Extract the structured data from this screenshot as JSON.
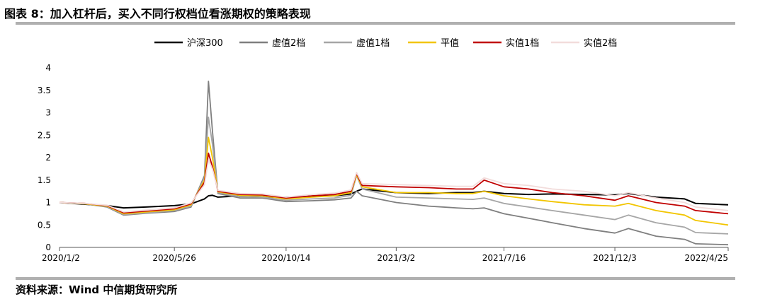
{
  "page": {
    "title": "图表 8：加入杠杆后，买入不同行权档位看涨期权的策略表现",
    "source": "资料来源：Wind 中信期货研究所"
  },
  "chart_data": {
    "type": "line",
    "title": "",
    "xlabel": "",
    "ylabel": "",
    "ylim": [
      0,
      4
    ],
    "yticks": [
      "0",
      "0.5",
      "1",
      "1.5",
      "2",
      "2.5",
      "3",
      "3.5",
      "4"
    ],
    "xticks": [
      "2020/1/2",
      "2020/5/26",
      "2020/10/14",
      "2021/3/2",
      "2021/7/16",
      "2021/12/3",
      "2022/4/25"
    ],
    "legend_position": "top",
    "grid": false,
    "x": [
      "2020/1/2",
      "2020/2/3",
      "2020/3/2",
      "2020/3/23",
      "2020/4/20",
      "2020/5/26",
      "2020/6/16",
      "2020/7/3",
      "2020/7/8",
      "2020/7/13",
      "2020/7/20",
      "2020/8/17",
      "2020/9/14",
      "2020/10/14",
      "2020/11/16",
      "2020/12/14",
      "2021/1/4",
      "2021/1/11",
      "2021/1/18",
      "2021/3/2",
      "2021/4/12",
      "2021/5/17",
      "2021/6/7",
      "2021/6/21",
      "2021/7/16",
      "2021/8/16",
      "2021/9/15",
      "2021/10/25",
      "2021/12/3",
      "2021/12/20",
      "2022/1/24",
      "2022/3/1",
      "2022/3/15",
      "2022/4/25"
    ],
    "series": [
      {
        "name": "沪深300",
        "color": "#000000",
        "values": [
          1.0,
          0.96,
          0.93,
          0.88,
          0.9,
          0.93,
          0.97,
          1.08,
          1.15,
          1.16,
          1.12,
          1.15,
          1.12,
          1.12,
          1.14,
          1.15,
          1.19,
          1.25,
          1.3,
          1.22,
          1.2,
          1.22,
          1.22,
          1.25,
          1.2,
          1.18,
          1.19,
          1.18,
          1.17,
          1.2,
          1.12,
          1.08,
          0.98,
          0.95
        ]
      },
      {
        "name": "虚值2档",
        "color": "#7f7f7f",
        "values": [
          1.0,
          0.97,
          0.9,
          0.72,
          0.76,
          0.8,
          0.9,
          1.6,
          3.7,
          2.6,
          1.2,
          1.1,
          1.1,
          1.02,
          1.04,
          1.06,
          1.1,
          1.25,
          1.15,
          1.0,
          0.92,
          0.88,
          0.86,
          0.88,
          0.75,
          0.65,
          0.55,
          0.42,
          0.32,
          0.42,
          0.25,
          0.18,
          0.08,
          0.06
        ]
      },
      {
        "name": "虚值1档",
        "color": "#a6a6a6",
        "values": [
          1.0,
          0.97,
          0.91,
          0.73,
          0.77,
          0.82,
          0.92,
          1.55,
          2.9,
          2.3,
          1.22,
          1.13,
          1.12,
          1.05,
          1.08,
          1.1,
          1.16,
          1.6,
          1.3,
          1.12,
          1.1,
          1.08,
          1.07,
          1.1,
          0.98,
          0.9,
          0.82,
          0.72,
          0.62,
          0.72,
          0.55,
          0.45,
          0.33,
          0.3
        ]
      },
      {
        "name": "平值",
        "color": "#f2c500",
        "values": [
          1.0,
          0.97,
          0.92,
          0.75,
          0.79,
          0.84,
          0.95,
          1.5,
          2.45,
          2.0,
          1.24,
          1.16,
          1.15,
          1.08,
          1.12,
          1.15,
          1.22,
          1.62,
          1.35,
          1.22,
          1.22,
          1.2,
          1.2,
          1.25,
          1.15,
          1.08,
          1.02,
          0.95,
          0.92,
          0.98,
          0.82,
          0.72,
          0.6,
          0.5
        ]
      },
      {
        "name": "实值1档",
        "color": "#c00000",
        "values": [
          1.0,
          0.98,
          0.93,
          0.77,
          0.81,
          0.86,
          0.97,
          1.45,
          2.1,
          1.8,
          1.25,
          1.18,
          1.17,
          1.1,
          1.15,
          1.18,
          1.25,
          1.65,
          1.38,
          1.35,
          1.33,
          1.3,
          1.3,
          1.5,
          1.35,
          1.3,
          1.22,
          1.15,
          1.05,
          1.15,
          1.0,
          0.92,
          0.82,
          0.75
        ]
      },
      {
        "name": "实值2档",
        "color": "#f2dcdb",
        "values": [
          1.0,
          0.98,
          0.94,
          0.79,
          0.83,
          0.88,
          0.99,
          1.4,
          1.95,
          1.75,
          1.27,
          1.2,
          1.19,
          1.12,
          1.18,
          1.21,
          1.28,
          1.67,
          1.42,
          1.4,
          1.38,
          1.36,
          1.36,
          1.55,
          1.42,
          1.38,
          1.3,
          1.25,
          1.15,
          1.22,
          1.1,
          1.0,
          0.9,
          0.82
        ]
      }
    ]
  }
}
